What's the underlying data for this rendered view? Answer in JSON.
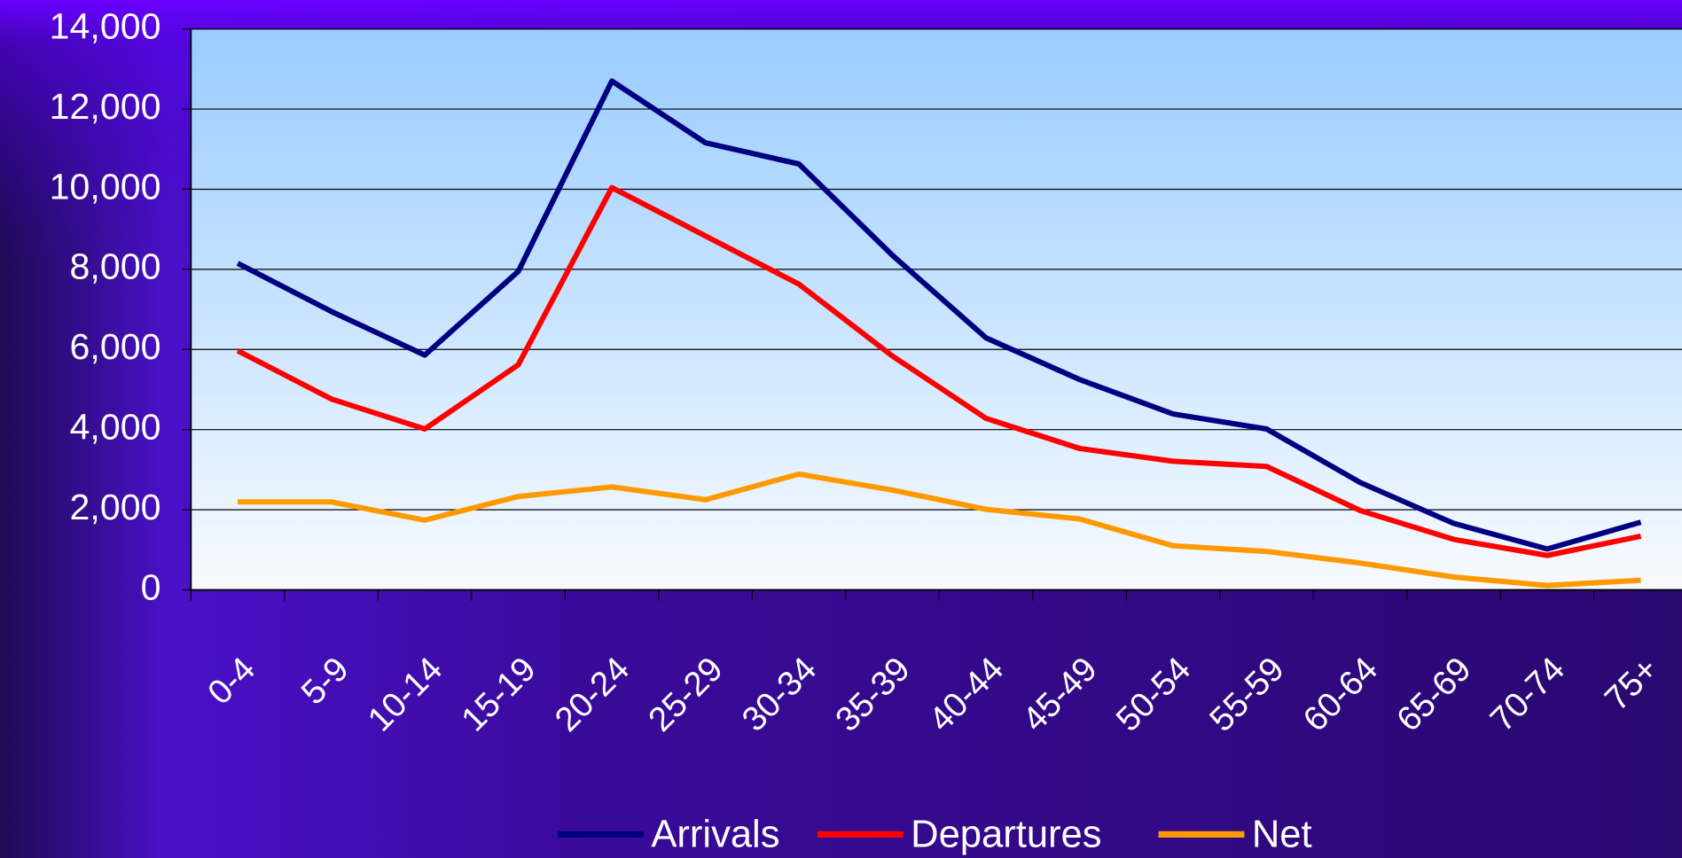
{
  "chart_data": {
    "type": "line",
    "categories": [
      "0-4",
      "5-9",
      "10-14",
      "15-19",
      "20-24",
      "25-29",
      "30-34",
      "35-39",
      "40-44",
      "45-49",
      "50-54",
      "55-59",
      "60-64",
      "65-69",
      "70-74",
      "75+"
    ],
    "series": [
      {
        "name": "Arrivals",
        "color": "#000080",
        "values": [
          8150,
          6950,
          5860,
          7950,
          12700,
          11160,
          10630,
          8350,
          6290,
          5250,
          4390,
          4015,
          2680,
          1660,
          1020,
          1690
        ]
      },
      {
        "name": "Departures",
        "color": "#ff0000",
        "values": [
          5970,
          4765,
          4015,
          5620,
          10040,
          8835,
          7630,
          5835,
          4280,
          3530,
          3210,
          3080,
          1980,
          1260,
          860,
          1340
        ]
      },
      {
        "name": "Net",
        "color": "#ff9900",
        "values": [
          2195,
          2195,
          1740,
          2330,
          2570,
          2250,
          2890,
          2490,
          2010,
          1770,
          1100,
          960,
          670,
          320,
          110,
          240
        ]
      }
    ],
    "ylim": [
      0,
      14000
    ],
    "yticks": [
      0,
      {
        "value": 2000,
        "label": "2,000"
      },
      {
        "value": 4000,
        "label": "4,000"
      },
      {
        "value": 6000,
        "label": "6,000"
      },
      {
        "value": 8000,
        "label": "8,000"
      },
      {
        "value": 10000,
        "label": "10,000"
      },
      {
        "value": 12000,
        "label": "12,000"
      },
      {
        "value": 14000,
        "label": "14,000"
      }
    ],
    "grid": true,
    "legend": "bottom"
  }
}
